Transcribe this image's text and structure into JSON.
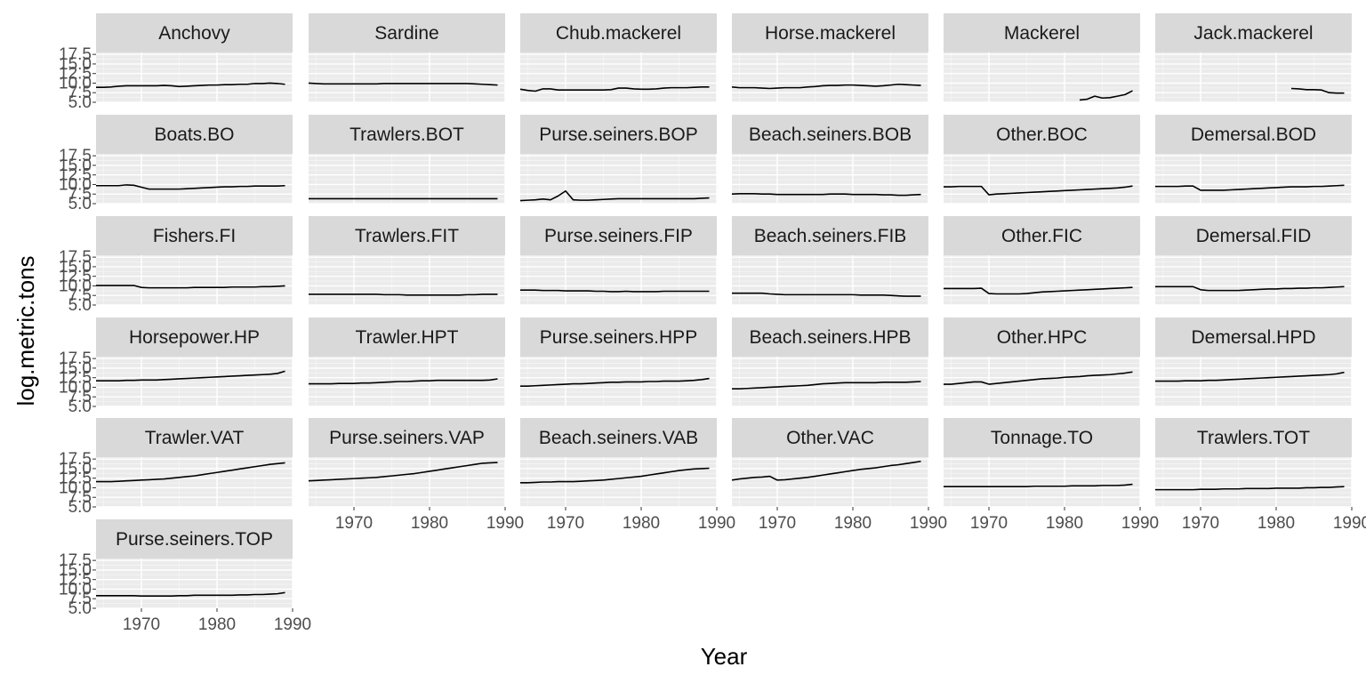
{
  "chart_data": {
    "type": "line",
    "xlabel": "Year",
    "ylabel": "log.metric.tons",
    "xlim": [
      1964,
      1990
    ],
    "ylim": [
      5,
      18
    ],
    "x_ticks": [
      "1970",
      "1980",
      "1990"
    ],
    "y_ticks": [
      "5.0",
      "7.5",
      "10.0",
      "12.5",
      "15.0",
      "17.5"
    ],
    "grid": true,
    "panels": [
      {
        "name": "Anchovy",
        "start": 1964,
        "values": [
          8.9,
          8.9,
          9.0,
          9.2,
          9.3,
          9.3,
          9.3,
          9.3,
          9.3,
          9.4,
          9.3,
          9.1,
          9.2,
          9.3,
          9.4,
          9.5,
          9.5,
          9.6,
          9.6,
          9.7,
          9.7,
          9.9,
          9.9,
          10.0,
          9.9,
          9.7
        ]
      },
      {
        "name": "Sardine",
        "start": 1964,
        "values": [
          10.0,
          9.9,
          9.8,
          9.8,
          9.8,
          9.8,
          9.8,
          9.8,
          9.8,
          9.8,
          9.9,
          9.9,
          9.9,
          9.9,
          9.9,
          9.9,
          9.9,
          9.9,
          9.9,
          9.9,
          9.9,
          9.9,
          9.8,
          9.7,
          9.6,
          9.5
        ]
      },
      {
        "name": "Chub.mackerel",
        "start": 1964,
        "values": [
          8.4,
          8.1,
          7.9,
          8.5,
          8.5,
          8.2,
          8.2,
          8.2,
          8.2,
          8.2,
          8.2,
          8.2,
          8.3,
          8.7,
          8.7,
          8.5,
          8.4,
          8.4,
          8.5,
          8.7,
          8.8,
          8.8,
          8.8,
          8.9,
          9.0,
          9.0
        ]
      },
      {
        "name": "Horse.mackerel",
        "start": 1964,
        "values": [
          9.0,
          8.8,
          8.8,
          8.8,
          8.7,
          8.6,
          8.7,
          8.8,
          8.8,
          8.8,
          9.0,
          9.1,
          9.3,
          9.4,
          9.4,
          9.5,
          9.5,
          9.4,
          9.3,
          9.2,
          9.3,
          9.5,
          9.7,
          9.6,
          9.5,
          9.4
        ]
      },
      {
        "name": "Mackerel",
        "start": 1982,
        "values": [
          5.6,
          5.8,
          6.6,
          6.1,
          6.2,
          6.6,
          7.0,
          8.0
        ]
      },
      {
        "name": "Jack.mackerel",
        "start": 1982,
        "values": [
          8.6,
          8.5,
          8.3,
          8.3,
          8.2,
          7.5,
          7.4,
          7.4
        ]
      },
      {
        "name": "Boats.BO",
        "start": 1964,
        "values": [
          9.7,
          9.7,
          9.7,
          9.7,
          9.9,
          9.8,
          9.3,
          8.8,
          8.8,
          8.8,
          8.8,
          8.8,
          8.9,
          9.0,
          9.1,
          9.2,
          9.3,
          9.4,
          9.4,
          9.5,
          9.5,
          9.6,
          9.6,
          9.6,
          9.6,
          9.7
        ]
      },
      {
        "name": "Trawlers.BOT",
        "start": 1964,
        "values": [
          6.3,
          6.3,
          6.3,
          6.3,
          6.3,
          6.3,
          6.3,
          6.3,
          6.3,
          6.3,
          6.3,
          6.3,
          6.3,
          6.3,
          6.3,
          6.3,
          6.3,
          6.3,
          6.3,
          6.3,
          6.3,
          6.3,
          6.3,
          6.3,
          6.3,
          6.3
        ]
      },
      {
        "name": "Purse.seiners.BOP",
        "start": 1964,
        "values": [
          5.8,
          5.9,
          6.0,
          6.2,
          6.0,
          7.0,
          8.3,
          6.0,
          5.9,
          5.9,
          6.0,
          6.1,
          6.2,
          6.3,
          6.3,
          6.3,
          6.3,
          6.3,
          6.3,
          6.3,
          6.3,
          6.3,
          6.3,
          6.3,
          6.4,
          6.5
        ]
      },
      {
        "name": "Beach.seiners.BOB",
        "start": 1964,
        "values": [
          7.5,
          7.6,
          7.6,
          7.6,
          7.5,
          7.5,
          7.4,
          7.4,
          7.4,
          7.4,
          7.4,
          7.4,
          7.4,
          7.5,
          7.5,
          7.5,
          7.4,
          7.4,
          7.4,
          7.4,
          7.3,
          7.3,
          7.2,
          7.2,
          7.3,
          7.4
        ]
      },
      {
        "name": "Other.BOC",
        "start": 1964,
        "values": [
          9.4,
          9.4,
          9.5,
          9.5,
          9.5,
          9.5,
          7.3,
          7.5,
          7.6,
          7.7,
          7.8,
          7.9,
          8.0,
          8.1,
          8.2,
          8.3,
          8.4,
          8.5,
          8.6,
          8.7,
          8.8,
          8.9,
          9.0,
          9.1,
          9.3,
          9.6
        ]
      },
      {
        "name": "Demersal.BOD",
        "start": 1964,
        "values": [
          9.5,
          9.5,
          9.5,
          9.5,
          9.6,
          9.6,
          8.5,
          8.5,
          8.5,
          8.5,
          8.6,
          8.7,
          8.8,
          8.9,
          9.0,
          9.1,
          9.2,
          9.3,
          9.4,
          9.4,
          9.4,
          9.5,
          9.5,
          9.6,
          9.7,
          9.8
        ]
      },
      {
        "name": "Fishers.FI",
        "start": 1964,
        "values": [
          10.1,
          10.1,
          10.1,
          10.1,
          10.1,
          10.1,
          9.6,
          9.5,
          9.5,
          9.5,
          9.5,
          9.5,
          9.5,
          9.6,
          9.6,
          9.6,
          9.6,
          9.6,
          9.7,
          9.7,
          9.7,
          9.7,
          9.8,
          9.8,
          9.9,
          10.0
        ]
      },
      {
        "name": "Trawlers.FIT",
        "start": 1964,
        "values": [
          7.8,
          7.8,
          7.8,
          7.8,
          7.8,
          7.8,
          7.8,
          7.8,
          7.8,
          7.8,
          7.7,
          7.7,
          7.7,
          7.6,
          7.6,
          7.6,
          7.6,
          7.6,
          7.6,
          7.6,
          7.6,
          7.7,
          7.7,
          7.8,
          7.8,
          7.8
        ]
      },
      {
        "name": "Purse.seiners.FIP",
        "start": 1964,
        "values": [
          8.9,
          8.9,
          8.9,
          8.8,
          8.8,
          8.8,
          8.7,
          8.7,
          8.7,
          8.7,
          8.6,
          8.6,
          8.5,
          8.5,
          8.6,
          8.5,
          8.5,
          8.5,
          8.5,
          8.6,
          8.6,
          8.6,
          8.6,
          8.6,
          8.6,
          8.6
        ]
      },
      {
        "name": "Beach.seiners.FIB",
        "start": 1964,
        "values": [
          8.1,
          8.1,
          8.1,
          8.1,
          8.1,
          7.9,
          7.8,
          7.7,
          7.7,
          7.7,
          7.7,
          7.7,
          7.7,
          7.7,
          7.7,
          7.7,
          7.7,
          7.6,
          7.6,
          7.6,
          7.6,
          7.5,
          7.4,
          7.3,
          7.3,
          7.3
        ]
      },
      {
        "name": "Other.FIC",
        "start": 1964,
        "values": [
          9.3,
          9.3,
          9.3,
          9.3,
          9.3,
          9.4,
          8.0,
          7.9,
          7.9,
          7.9,
          7.9,
          8.0,
          8.2,
          8.4,
          8.5,
          8.6,
          8.7,
          8.8,
          8.9,
          9.0,
          9.1,
          9.2,
          9.3,
          9.4,
          9.5,
          9.6
        ]
      },
      {
        "name": "Demersal.FID",
        "start": 1964,
        "values": [
          9.8,
          9.8,
          9.8,
          9.8,
          9.8,
          9.8,
          9.0,
          8.8,
          8.8,
          8.8,
          8.8,
          8.8,
          8.9,
          9.0,
          9.1,
          9.2,
          9.2,
          9.3,
          9.3,
          9.4,
          9.4,
          9.5,
          9.5,
          9.6,
          9.7,
          9.8
        ]
      },
      {
        "name": "Horsepower.HP",
        "start": 1964,
        "values": [
          11.7,
          11.7,
          11.7,
          11.7,
          11.8,
          11.8,
          11.9,
          11.9,
          11.9,
          12.0,
          12.1,
          12.2,
          12.3,
          12.4,
          12.5,
          12.6,
          12.7,
          12.8,
          12.9,
          13.0,
          13.1,
          13.2,
          13.3,
          13.4,
          13.6,
          14.2
        ]
      },
      {
        "name": "Trawler.HPT",
        "start": 1964,
        "values": [
          10.9,
          10.9,
          10.9,
          10.9,
          11.0,
          11.0,
          11.0,
          11.1,
          11.1,
          11.2,
          11.3,
          11.4,
          11.5,
          11.5,
          11.6,
          11.7,
          11.7,
          11.8,
          11.8,
          11.8,
          11.8,
          11.8,
          11.8,
          11.8,
          11.9,
          12.2
        ]
      },
      {
        "name": "Purse.seiners.HPP",
        "start": 1964,
        "values": [
          10.3,
          10.3,
          10.4,
          10.5,
          10.6,
          10.7,
          10.8,
          10.9,
          10.9,
          11.0,
          11.1,
          11.2,
          11.3,
          11.3,
          11.4,
          11.4,
          11.4,
          11.5,
          11.5,
          11.6,
          11.6,
          11.6,
          11.7,
          11.8,
          12.0,
          12.3
        ]
      },
      {
        "name": "Beach.seiners.HPB",
        "start": 1964,
        "values": [
          9.6,
          9.6,
          9.7,
          9.8,
          9.9,
          10.0,
          10.1,
          10.2,
          10.3,
          10.4,
          10.5,
          10.7,
          10.9,
          11.0,
          11.1,
          11.2,
          11.2,
          11.2,
          11.2,
          11.2,
          11.3,
          11.3,
          11.3,
          11.3,
          11.4,
          11.5
        ]
      },
      {
        "name": "Other.HPC",
        "start": 1964,
        "values": [
          10.8,
          10.8,
          11.0,
          11.2,
          11.4,
          11.4,
          10.8,
          11.0,
          11.2,
          11.4,
          11.6,
          11.8,
          12.0,
          12.2,
          12.3,
          12.4,
          12.6,
          12.7,
          12.8,
          13.0,
          13.1,
          13.2,
          13.3,
          13.5,
          13.7,
          14.0
        ]
      },
      {
        "name": "Demersal.HPD",
        "start": 1964,
        "values": [
          11.6,
          11.6,
          11.6,
          11.6,
          11.7,
          11.7,
          11.7,
          11.8,
          11.8,
          11.9,
          12.0,
          12.1,
          12.2,
          12.3,
          12.4,
          12.5,
          12.6,
          12.7,
          12.8,
          12.9,
          13.0,
          13.1,
          13.2,
          13.3,
          13.5,
          13.9
        ]
      },
      {
        "name": "Trawler.VAT",
        "start": 1964,
        "values": [
          11.6,
          11.6,
          11.6,
          11.7,
          11.8,
          11.9,
          12.0,
          12.1,
          12.2,
          12.3,
          12.5,
          12.7,
          12.9,
          13.1,
          13.4,
          13.7,
          14.0,
          14.3,
          14.6,
          14.9,
          15.2,
          15.5,
          15.8,
          16.1,
          16.3,
          16.5
        ]
      },
      {
        "name": "Purse.seiners.VAP",
        "start": 1964,
        "values": [
          11.8,
          11.9,
          12.0,
          12.1,
          12.2,
          12.3,
          12.4,
          12.5,
          12.6,
          12.7,
          12.9,
          13.1,
          13.3,
          13.5,
          13.7,
          14.0,
          14.3,
          14.6,
          14.9,
          15.2,
          15.5,
          15.8,
          16.1,
          16.4,
          16.5,
          16.6
        ]
      },
      {
        "name": "Beach.seiners.VAB",
        "start": 1964,
        "values": [
          11.3,
          11.3,
          11.4,
          11.5,
          11.5,
          11.6,
          11.6,
          11.6,
          11.7,
          11.8,
          11.9,
          12.0,
          12.2,
          12.4,
          12.6,
          12.8,
          13.0,
          13.3,
          13.6,
          13.9,
          14.2,
          14.5,
          14.7,
          14.9,
          15.0,
          15.1
        ]
      },
      {
        "name": "Other.VAC",
        "start": 1964,
        "values": [
          12.0,
          12.3,
          12.5,
          12.7,
          12.8,
          13.0,
          12.0,
          12.1,
          12.3,
          12.5,
          12.7,
          13.0,
          13.3,
          13.6,
          13.9,
          14.2,
          14.5,
          14.8,
          15.0,
          15.2,
          15.5,
          15.8,
          16.0,
          16.3,
          16.6,
          16.9
        ]
      },
      {
        "name": "Tonnage.TO",
        "start": 1964,
        "values": [
          10.3,
          10.3,
          10.3,
          10.3,
          10.3,
          10.3,
          10.3,
          10.3,
          10.3,
          10.3,
          10.3,
          10.3,
          10.4,
          10.4,
          10.4,
          10.4,
          10.4,
          10.5,
          10.5,
          10.5,
          10.5,
          10.6,
          10.6,
          10.6,
          10.7,
          10.9
        ]
      },
      {
        "name": "Trawlers.TOT",
        "start": 1964,
        "values": [
          9.5,
          9.5,
          9.5,
          9.5,
          9.5,
          9.5,
          9.6,
          9.6,
          9.6,
          9.7,
          9.7,
          9.7,
          9.8,
          9.8,
          9.8,
          9.8,
          9.9,
          9.9,
          9.9,
          9.9,
          10.0,
          10.0,
          10.1,
          10.1,
          10.2,
          10.3
        ]
      },
      {
        "name": "Purse.seiners.TOP",
        "start": 1964,
        "values": [
          8.3,
          8.3,
          8.3,
          8.3,
          8.3,
          8.3,
          8.2,
          8.2,
          8.2,
          8.2,
          8.2,
          8.3,
          8.3,
          8.4,
          8.4,
          8.4,
          8.4,
          8.4,
          8.4,
          8.5,
          8.5,
          8.6,
          8.6,
          8.7,
          8.8,
          9.1
        ]
      }
    ]
  }
}
